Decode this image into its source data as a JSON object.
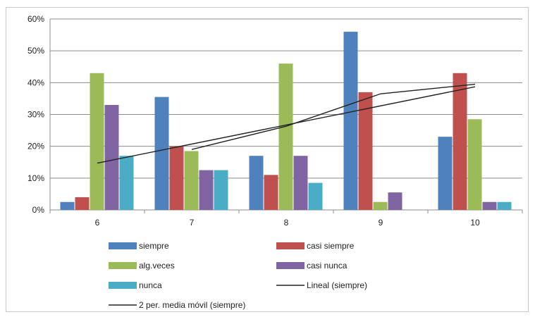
{
  "chart_data": {
    "type": "bar",
    "categories": [
      "6",
      "7",
      "8",
      "9",
      "10"
    ],
    "y_ticks": [
      "0%",
      "10%",
      "20%",
      "30%",
      "40%",
      "50%",
      "60%"
    ],
    "ylim": [
      0,
      60
    ],
    "y_unit": "%",
    "grid": "horizontal",
    "legend_position": "bottom",
    "series": [
      {
        "name": "siempre",
        "color": "#4f81bd",
        "values": [
          2.5,
          35.5,
          17,
          56,
          23
        ]
      },
      {
        "name": "casi siempre",
        "color": "#c0504d",
        "values": [
          4,
          20,
          11,
          37,
          43
        ]
      },
      {
        "name": "alg.veces",
        "color": "#9bbb59",
        "values": [
          43,
          18.5,
          46,
          2.5,
          28.5
        ]
      },
      {
        "name": "casi nunca",
        "color": "#8064a2",
        "values": [
          33,
          12.5,
          17,
          5.5,
          2.5
        ]
      },
      {
        "name": "nunca",
        "color": "#4bacc6",
        "values": [
          17,
          12.5,
          8.5,
          0,
          2.5
        ]
      }
    ],
    "lines": [
      {
        "name": "Lineal (siempre)",
        "color": "#222222",
        "x": [
          "6",
          "10"
        ],
        "values": [
          14.7,
          38.7
        ]
      },
      {
        "name": "2 per. media móvil (siempre)",
        "color": "#222222",
        "x": [
          "7",
          "8",
          "9",
          "10"
        ],
        "values": [
          19,
          26.3,
          36.5,
          39.5
        ]
      }
    ],
    "legend": [
      {
        "label": "siempre",
        "kind": "bar",
        "color": "#4f81bd"
      },
      {
        "label": "casi siempre",
        "kind": "bar",
        "color": "#c0504d"
      },
      {
        "label": "alg.veces",
        "kind": "bar",
        "color": "#9bbb59"
      },
      {
        "label": "casi nunca",
        "kind": "bar",
        "color": "#8064a2"
      },
      {
        "label": "nunca",
        "kind": "bar",
        "color": "#4bacc6"
      },
      {
        "label": "Lineal (siempre)",
        "kind": "line",
        "color": "#222222"
      },
      {
        "label": "2 per. media móvil (siempre)",
        "kind": "line",
        "color": "#222222"
      }
    ]
  }
}
